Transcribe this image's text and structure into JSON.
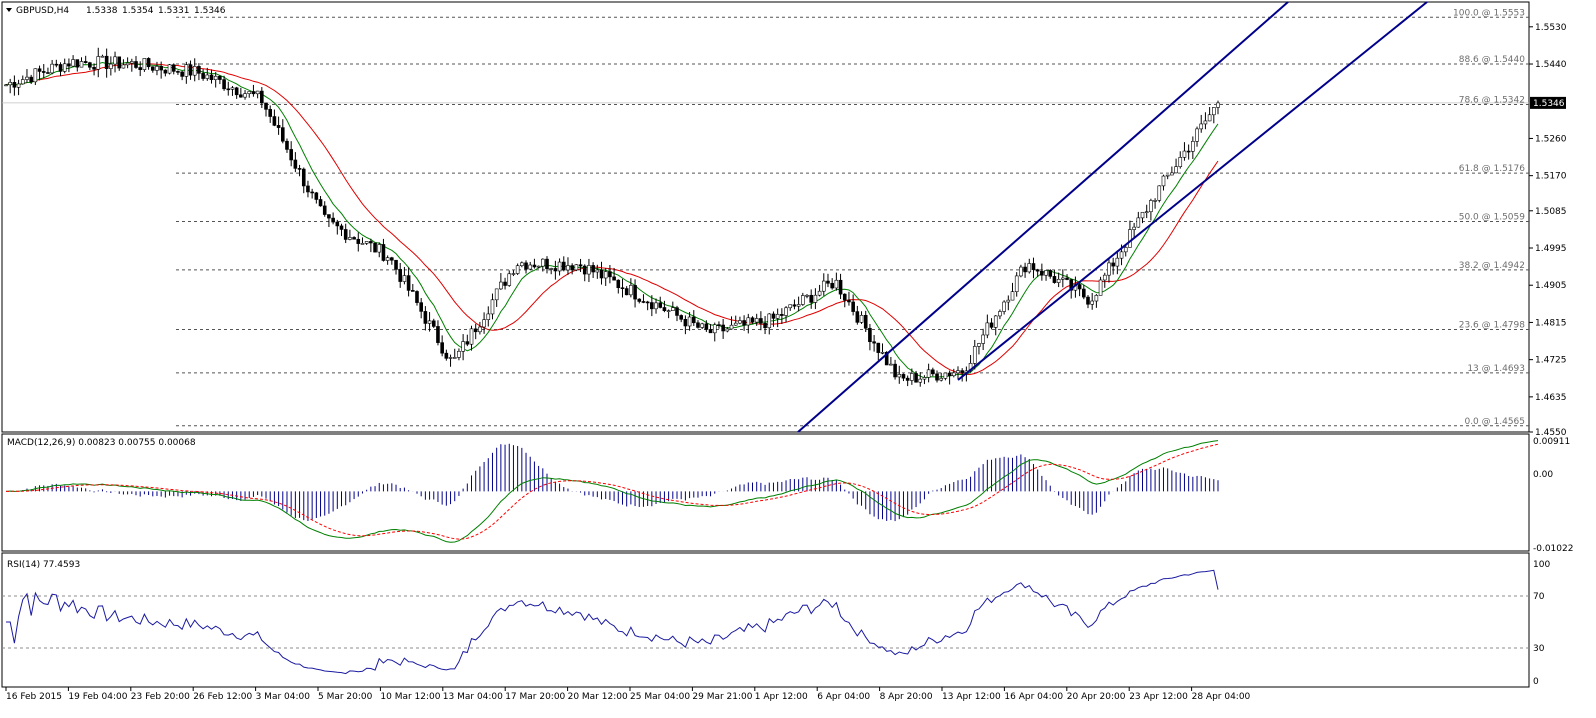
{
  "symbol_header": {
    "symbol": "GBPUSD,H4",
    "open": "1.5338",
    "high": "1.5354",
    "low": "1.5331",
    "close": "1.5346"
  },
  "price_axis": {
    "ticks": [
      "1.5530",
      "1.5440",
      "1.5260",
      "1.5170",
      "1.5085",
      "1.4995",
      "1.4905",
      "1.4815",
      "1.4725",
      "1.4635",
      "1.4550"
    ],
    "current_price": "1.5346"
  },
  "fib_levels": [
    {
      "label": "100.0 @ 1.5553",
      "price": 1.5553
    },
    {
      "label": "88.6 @ 1.5440",
      "price": 1.544
    },
    {
      "label": "78.6 @ 1.5342",
      "price": 1.5342
    },
    {
      "label": "61.8 @ 1.5176",
      "price": 1.5176
    },
    {
      "label": "50.0 @ 1.5059",
      "price": 1.5059
    },
    {
      "label": "38.2 @ 1.4942",
      "price": 1.4942
    },
    {
      "label": "23.6 @ 1.4798",
      "price": 1.4798
    },
    {
      "label": "13 @ 1.4693",
      "price": 1.4693
    },
    {
      "label": "0.0 @ 1.4565",
      "price": 1.4565
    }
  ],
  "macd": {
    "label": "MACD(12,26,9) 0.00823 0.00755 0.00068",
    "ticks": [
      "0.00911",
      "0.00",
      "-0.01022"
    ]
  },
  "rsi": {
    "label": "RSI(14) 77.4593",
    "ticks": [
      "100",
      "70",
      "30",
      "0"
    ]
  },
  "time_axis": [
    "16 Feb 2015",
    "19 Feb 04:00",
    "23 Feb 20:00",
    "26 Feb 12:00",
    "3 Mar 04:00",
    "5 Mar 20:00",
    "10 Mar 12:00",
    "13 Mar 04:00",
    "17 Mar 20:00",
    "20 Mar 12:00",
    "25 Mar 04:00",
    "29 Mar 21:00",
    "1 Apr 12:00",
    "6 Apr 04:00",
    "8 Apr 20:00",
    "13 Apr 12:00",
    "16 Apr 04:00",
    "20 Apr 20:00",
    "23 Apr 12:00",
    "28 Apr 04:00"
  ],
  "chart_data": {
    "type": "line",
    "symbol": "GBPUSD",
    "timeframe": "H4",
    "x": [
      "16 Feb 2015",
      "19 Feb 04:00",
      "23 Feb 20:00",
      "26 Feb 12:00",
      "3 Mar 04:00",
      "5 Mar 20:00",
      "10 Mar 12:00",
      "13 Mar 04:00",
      "17 Mar 20:00",
      "20 Mar 12:00",
      "25 Mar 04:00",
      "29 Mar 21:00",
      "1 Apr 12:00",
      "6 Apr 04:00",
      "8 Apr 20:00",
      "13 Apr 12:00",
      "16 Apr 04:00",
      "20 Apr 20:00",
      "23 Apr 12:00",
      "28 Apr 04:00"
    ],
    "series": [
      {
        "values": [
          1.539,
          1.5445,
          1.544,
          1.542,
          1.5355,
          1.506,
          1.4975,
          1.4715,
          1.496,
          1.4955,
          1.4875,
          1.479,
          1.482,
          1.4915,
          1.4675,
          1.47,
          1.496,
          1.487,
          1.512,
          1.5346
        ]
      }
    ],
    "ylim": [
      1.455,
      1.559
    ],
    "swing_low": 1.4565,
    "swing_high": 1.5553,
    "last_price": 1.5346,
    "macd": {
      "main": 0.00823,
      "signal": 0.00755,
      "histogram": 0.00068,
      "range": [
        -0.01022,
        0.00911
      ]
    },
    "rsi": {
      "value": 77.4593,
      "levels": [
        70,
        30
      ],
      "range": [
        0,
        100
      ]
    }
  }
}
